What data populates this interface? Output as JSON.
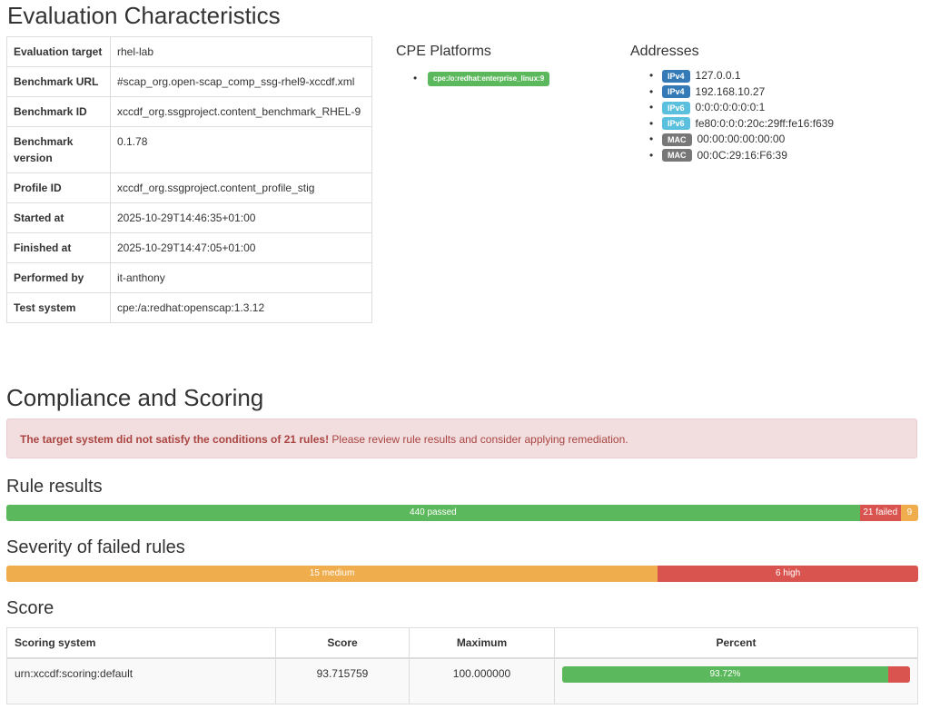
{
  "evaluation": {
    "heading": "Evaluation Characteristics",
    "rows": [
      {
        "key": "Evaluation target",
        "value": "rhel-lab"
      },
      {
        "key": "Benchmark URL",
        "value": "#scap_org.open-scap_comp_ssg-rhel9-xccdf.xml"
      },
      {
        "key": "Benchmark ID",
        "value": "xccdf_org.ssgproject.content_benchmark_RHEL-9"
      },
      {
        "key": "Benchmark version",
        "value": "0.1.78"
      },
      {
        "key": "Profile ID",
        "value": "xccdf_org.ssgproject.content_profile_stig"
      },
      {
        "key": "Started at",
        "value": "2025-10-29T14:46:35+01:00"
      },
      {
        "key": "Finished at",
        "value": "2025-10-29T14:47:05+01:00"
      },
      {
        "key": "Performed by",
        "value": "it-anthony"
      },
      {
        "key": "Test system",
        "value": "cpe:/a:redhat:openscap:1.3.12"
      }
    ]
  },
  "cpe": {
    "heading": "CPE Platforms",
    "items": [
      "cpe:/o:redhat:enterprise_linux:9"
    ]
  },
  "addresses": {
    "heading": "Addresses",
    "items": [
      {
        "type": "IPv4",
        "value": "127.0.0.1"
      },
      {
        "type": "IPv4",
        "value": "192.168.10.27"
      },
      {
        "type": "IPv6",
        "value": "0:0:0:0:0:0:0:1"
      },
      {
        "type": "IPv6",
        "value": "fe80:0:0:0:20c:29ff:fe16:f639"
      },
      {
        "type": "MAC",
        "value": "00:00:00:00:00:00"
      },
      {
        "type": "MAC",
        "value": "00:0C:29:16:F6:39"
      }
    ]
  },
  "compliance": {
    "heading": "Compliance and Scoring",
    "alert_strong": "The target system did not satisfy the conditions of 21 rules!",
    "alert_text": " Please review rule results and consider applying remediation."
  },
  "rule_results": {
    "heading": "Rule results",
    "passed": {
      "count": 440,
      "label": "440 passed"
    },
    "failed": {
      "count": 21,
      "label": "21 failed"
    },
    "other": {
      "count": 9,
      "label": "9"
    }
  },
  "severity": {
    "heading": "Severity of failed rules",
    "medium": {
      "count": 15,
      "label": "15 medium"
    },
    "high": {
      "count": 6,
      "label": "6 high"
    }
  },
  "score": {
    "heading": "Score",
    "columns": [
      "Scoring system",
      "Score",
      "Maximum",
      "Percent"
    ],
    "rows": [
      {
        "system": "urn:xccdf:scoring:default",
        "score": "93.715759",
        "maximum": "100.000000",
        "percent_label": "93.72%",
        "percent": 93.72
      }
    ]
  },
  "colors": {
    "success": "#5cb85c",
    "danger": "#d9534f",
    "warning": "#f0ad4e",
    "ipv4": "#337ab7",
    "ipv6": "#5bc0de",
    "mac": "#777777"
  }
}
